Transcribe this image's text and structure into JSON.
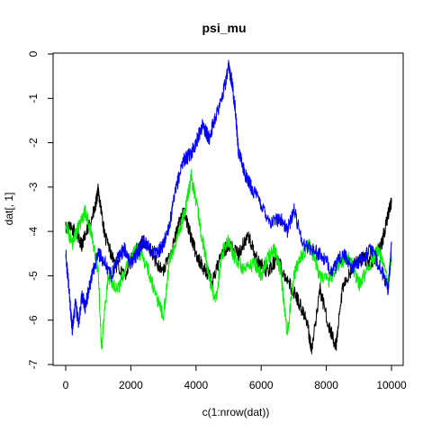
{
  "chart_data": {
    "type": "line",
    "title": "psi_mu",
    "xlabel": "c(1:nrow(dat))",
    "ylabel": "dat[, 1]",
    "xlim": [
      0,
      10000
    ],
    "ylim": [
      -7,
      0
    ],
    "x_ticks": [
      0,
      2000,
      4000,
      6000,
      8000,
      10000
    ],
    "y_ticks": [
      0,
      -1,
      -2,
      -3,
      -4,
      -5,
      -6,
      -7
    ],
    "grid": false,
    "legend": "none",
    "series": [
      {
        "color": "#000000",
        "x": [
          0,
          300,
          500,
          700,
          900,
          1000,
          1200,
          1500,
          1800,
          2100,
          2400,
          2700,
          3000,
          3300,
          3600,
          3800,
          4000,
          4200,
          4500,
          4800,
          5000,
          5300,
          5600,
          5900,
          6200,
          6500,
          6800,
          7100,
          7400,
          7550,
          7800,
          8100,
          8300,
          8500,
          8800,
          9100,
          9400,
          9700,
          9900,
          10000
        ],
        "y": [
          -3.9,
          -4.0,
          -4.3,
          -3.9,
          -3.5,
          -3.05,
          -4.1,
          -4.7,
          -5.0,
          -4.5,
          -4.2,
          -4.6,
          -4.9,
          -4.3,
          -3.5,
          -4.0,
          -4.5,
          -4.8,
          -5.1,
          -4.5,
          -4.3,
          -4.5,
          -4.1,
          -4.7,
          -4.9,
          -4.6,
          -5.1,
          -5.5,
          -6.0,
          -6.7,
          -5.3,
          -6.2,
          -6.6,
          -5.3,
          -4.8,
          -4.6,
          -4.7,
          -4.3,
          -3.6,
          -3.35
        ]
      },
      {
        "color": "#00ee00",
        "x": [
          0,
          200,
          400,
          600,
          800,
          1000,
          1100,
          1300,
          1600,
          1900,
          2200,
          2500,
          2800,
          3000,
          3200,
          3500,
          3700,
          3850,
          4000,
          4200,
          4400,
          4600,
          4800,
          5000,
          5200,
          5500,
          5800,
          6000,
          6200,
          6400,
          6600,
          6800,
          7000,
          7200,
          7500,
          7800,
          8100,
          8400,
          8700,
          9000,
          9300,
          9600,
          9900,
          10000
        ],
        "y": [
          -3.8,
          -4.3,
          -3.9,
          -3.55,
          -4.1,
          -4.9,
          -6.6,
          -5.0,
          -5.3,
          -4.7,
          -4.4,
          -4.8,
          -5.5,
          -5.9,
          -4.6,
          -4.0,
          -3.4,
          -2.75,
          -3.3,
          -4.2,
          -5.0,
          -5.6,
          -4.5,
          -4.2,
          -4.6,
          -4.9,
          -4.7,
          -5.0,
          -4.6,
          -4.4,
          -4.9,
          -6.3,
          -5.0,
          -4.6,
          -4.3,
          -5.0,
          -5.1,
          -4.7,
          -4.6,
          -5.2,
          -4.8,
          -4.4,
          -5.2,
          -4.6
        ]
      },
      {
        "color": "#0000ff",
        "x": [
          0,
          100,
          200,
          300,
          400,
          500,
          600,
          800,
          1000,
          1200,
          1400,
          1600,
          1800,
          2000,
          2200,
          2400,
          2600,
          2800,
          3000,
          3200,
          3400,
          3600,
          3800,
          4000,
          4200,
          4400,
          4600,
          4800,
          5000,
          5100,
          5200,
          5300,
          5500,
          5700,
          6000,
          6300,
          6600,
          6800,
          7000,
          7300,
          7600,
          7900,
          8200,
          8500,
          8800,
          9100,
          9400,
          9700,
          9900,
          10000
        ],
        "y": [
          -4.5,
          -5.3,
          -6.2,
          -5.6,
          -6.1,
          -5.4,
          -5.7,
          -5.0,
          -4.5,
          -4.7,
          -5.0,
          -4.6,
          -4.4,
          -4.7,
          -4.5,
          -4.2,
          -4.4,
          -4.5,
          -4.3,
          -3.8,
          -3.0,
          -2.4,
          -2.3,
          -2.0,
          -1.6,
          -1.9,
          -1.4,
          -1.0,
          -0.3,
          -0.6,
          -1.2,
          -2.2,
          -2.7,
          -3.0,
          -3.4,
          -3.8,
          -3.7,
          -4.0,
          -3.5,
          -4.3,
          -4.4,
          -4.6,
          -4.9,
          -4.5,
          -4.8,
          -4.6,
          -4.4,
          -4.9,
          -5.3,
          -4.3
        ]
      }
    ]
  }
}
